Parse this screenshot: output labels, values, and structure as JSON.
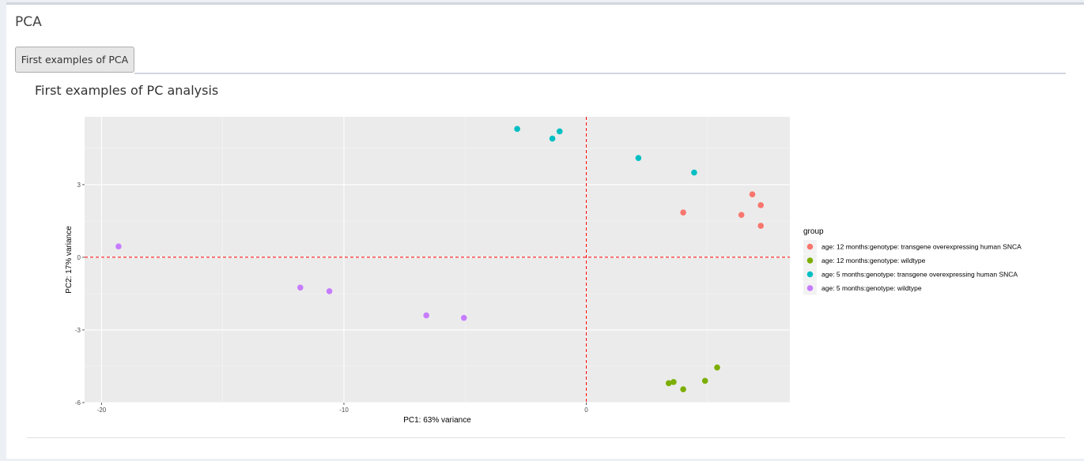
{
  "box": {
    "title": "PCA"
  },
  "tab": {
    "label": "First examples of PCA"
  },
  "panel": {
    "title": "First examples of PC analysis"
  },
  "chart_data": {
    "type": "scatter",
    "xlabel": "PC1: 63% variance",
    "ylabel": "PC2: 17% variance",
    "xlim": [
      -20.7,
      8.4
    ],
    "ylim": [
      -6.0,
      5.8
    ],
    "x_ticks": [
      -20,
      -10,
      0
    ],
    "y_ticks": [
      -6,
      -3,
      0,
      3
    ],
    "grid": true,
    "reference_lines": {
      "x": 0,
      "y": 0,
      "color": "#ff0000",
      "style": "dashed"
    },
    "legend": {
      "title": "group",
      "position": "right"
    },
    "series": [
      {
        "name": "age: 12 months:genotype: transgene overexpressing human SNCA",
        "color": "#F8766D",
        "points": [
          [
            4.0,
            1.85
          ],
          [
            6.4,
            1.75
          ],
          [
            6.85,
            2.6
          ],
          [
            7.2,
            2.15
          ],
          [
            7.2,
            1.3
          ]
        ]
      },
      {
        "name": "age: 12 months:genotype: wildtype",
        "color": "#7CAE00",
        "points": [
          [
            3.4,
            -5.2
          ],
          [
            3.6,
            -5.15
          ],
          [
            4.0,
            -5.45
          ],
          [
            4.9,
            -5.1
          ],
          [
            5.4,
            -4.55
          ]
        ]
      },
      {
        "name": "age: 5 months:genotype: transgene overexpressing human SNCA",
        "color": "#00BFC4",
        "points": [
          [
            -2.85,
            5.3
          ],
          [
            -1.4,
            4.9
          ],
          [
            -1.1,
            5.2
          ],
          [
            2.15,
            4.1
          ],
          [
            4.45,
            3.5
          ]
        ]
      },
      {
        "name": "age: 5 months:genotype: wildtype",
        "color": "#C77CFF",
        "points": [
          [
            -19.3,
            0.45
          ],
          [
            -11.8,
            -1.25
          ],
          [
            -10.6,
            -1.4
          ],
          [
            -6.6,
            -2.4
          ],
          [
            -5.05,
            -2.5
          ]
        ]
      }
    ]
  }
}
